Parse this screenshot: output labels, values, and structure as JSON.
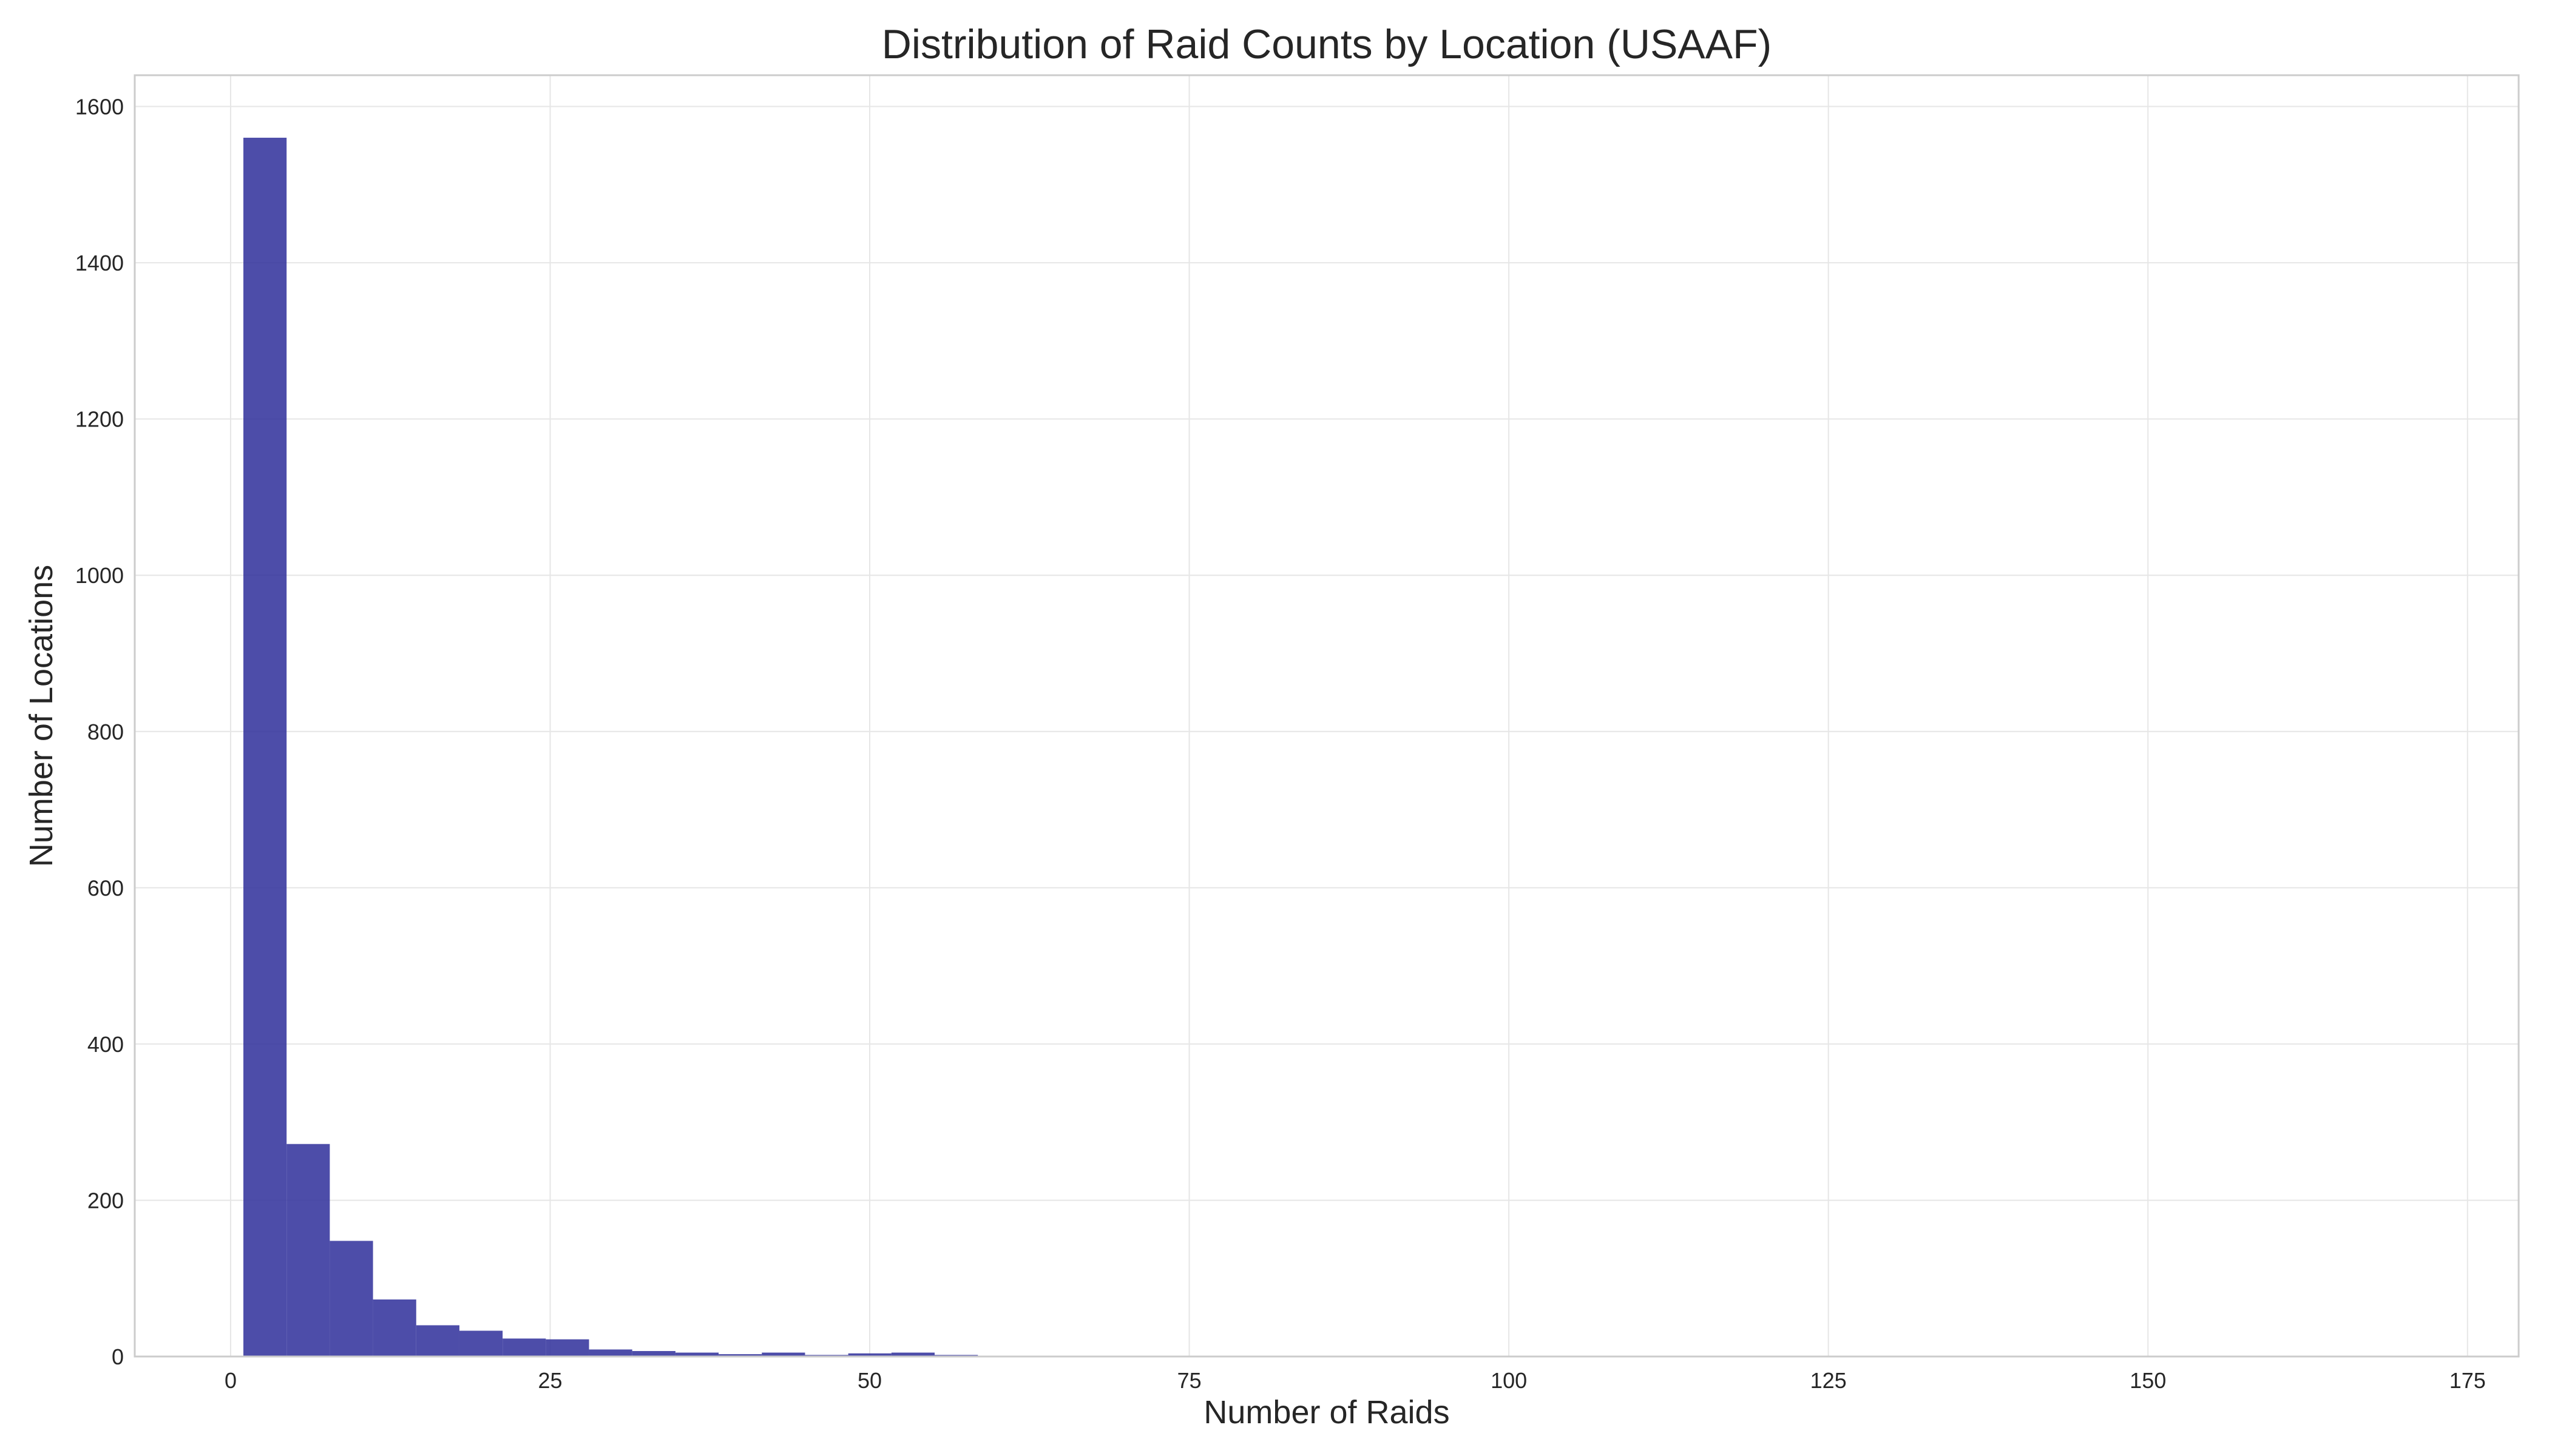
{
  "chart_data": {
    "type": "bar",
    "subtype": "histogram",
    "title": "Distribution of Raid Counts by Location (USAAF)",
    "xlabel": "Number of Raids",
    "ylabel": "Number of Locations",
    "xlim": [
      -7.5,
      179
    ],
    "ylim": [
      0,
      1640
    ],
    "xticks": [
      0,
      25,
      50,
      75,
      100,
      125,
      150,
      175
    ],
    "yticks": [
      0,
      200,
      400,
      600,
      800,
      1000,
      1200,
      1400,
      1600
    ],
    "grid": true,
    "color": "#2e2e9a",
    "bin_width": 3.38,
    "bins": [
      {
        "x0": 1.0,
        "count": 1560
      },
      {
        "x0": 4.38,
        "count": 272
      },
      {
        "x0": 7.76,
        "count": 148
      },
      {
        "x0": 11.14,
        "count": 73
      },
      {
        "x0": 14.52,
        "count": 40
      },
      {
        "x0": 17.9,
        "count": 33
      },
      {
        "x0": 21.28,
        "count": 23
      },
      {
        "x0": 24.66,
        "count": 22
      },
      {
        "x0": 28.04,
        "count": 9
      },
      {
        "x0": 31.42,
        "count": 7
      },
      {
        "x0": 34.8,
        "count": 5
      },
      {
        "x0": 38.18,
        "count": 3
      },
      {
        "x0": 41.56,
        "count": 5
      },
      {
        "x0": 44.94,
        "count": 2
      },
      {
        "x0": 48.32,
        "count": 4
      },
      {
        "x0": 51.7,
        "count": 5
      },
      {
        "x0": 55.08,
        "count": 2
      },
      {
        "x0": 58.46,
        "count": 1
      },
      {
        "x0": 61.84,
        "count": 1
      },
      {
        "x0": 89.0,
        "count": 1
      },
      {
        "x0": 95.76,
        "count": 1
      },
      {
        "x0": 122.8,
        "count": 1
      }
    ]
  }
}
